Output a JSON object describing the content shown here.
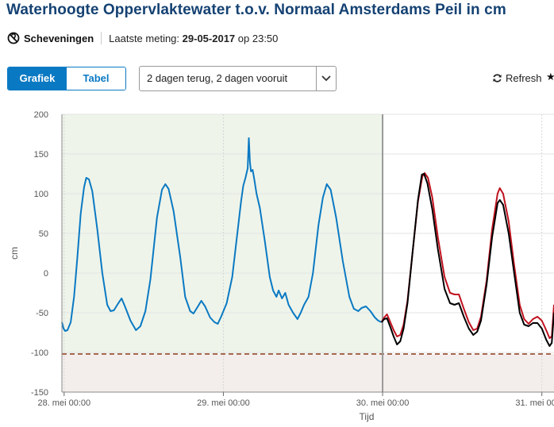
{
  "header": {
    "title": "Waterhoogte Oppervlaktewater t.o.v. Normaal Amsterdams Peil in cm",
    "location": "Scheveningen",
    "last_measurement_label": "Laatste meting:",
    "last_measurement_date": "29-05-2017",
    "last_measurement_time": "op 23:50"
  },
  "controls": {
    "view_toggle": [
      "Grafiek",
      "Tabel"
    ],
    "active_view": "Grafiek",
    "range_select": "2 dagen terug, 2 dagen vooruit",
    "refresh_label": "Refresh",
    "icons": {
      "location": "no-location-icon",
      "refresh": "refresh-icon",
      "dropdown": "chevron-down-icon",
      "favorite": "star-icon"
    }
  },
  "chart_data": {
    "type": "line",
    "xlabel": "Tijd",
    "ylabel": "cm",
    "ylim": [
      -150,
      200
    ],
    "yticks": [
      -150,
      -100,
      -50,
      0,
      50,
      100,
      150,
      200
    ],
    "xticks": [
      "28. mei 00:00",
      "29. mei 00:00",
      "30. mei 00:00",
      "31. mei 00:00"
    ],
    "x_start": "2017-05-27 23:40",
    "x_end": "2017-05-31 01:50",
    "now": "2017-05-30 00:00",
    "threshold": -102,
    "grid": true,
    "colors": {
      "measured": "#0a79c3",
      "forecast_red": "#c0121f",
      "forecast_black": "#000000",
      "threshold": "#8b3a1a",
      "past_bg": "#eef4ea",
      "below_bg": "#f3eeec",
      "now_line": "#999999"
    },
    "series": [
      {
        "color": "#0a79c3",
        "points": [
          [
            "2017-05-27 23:40",
            -62
          ],
          [
            "2017-05-27 23:55",
            -70
          ],
          [
            "2017-05-28 00:10",
            -73
          ],
          [
            "2017-05-28 00:30",
            -72
          ],
          [
            "2017-05-28 01:00",
            -62
          ],
          [
            "2017-05-28 01:30",
            -30
          ],
          [
            "2017-05-28 02:00",
            20
          ],
          [
            "2017-05-28 02:30",
            75
          ],
          [
            "2017-05-28 03:00",
            108
          ],
          [
            "2017-05-28 03:20",
            120
          ],
          [
            "2017-05-28 03:45",
            118
          ],
          [
            "2017-05-28 04:15",
            103
          ],
          [
            "2017-05-28 05:00",
            55
          ],
          [
            "2017-05-28 05:45",
            0
          ],
          [
            "2017-05-28 06:30",
            -40
          ],
          [
            "2017-05-28 07:00",
            -48
          ],
          [
            "2017-05-28 07:30",
            -47
          ],
          [
            "2017-05-28 08:10",
            -38
          ],
          [
            "2017-05-28 08:40",
            -32
          ],
          [
            "2017-05-28 09:10",
            -42
          ],
          [
            "2017-05-28 10:00",
            -60
          ],
          [
            "2017-05-28 10:50",
            -72
          ],
          [
            "2017-05-28 11:30",
            -67
          ],
          [
            "2017-05-28 12:15",
            -48
          ],
          [
            "2017-05-28 13:00",
            -8
          ],
          [
            "2017-05-28 14:00",
            70
          ],
          [
            "2017-05-28 14:45",
            105
          ],
          [
            "2017-05-28 15:15",
            112
          ],
          [
            "2017-05-28 15:45",
            106
          ],
          [
            "2017-05-28 16:30",
            78
          ],
          [
            "2017-05-28 17:30",
            20
          ],
          [
            "2017-05-28 18:15",
            -30
          ],
          [
            "2017-05-28 19:00",
            -48
          ],
          [
            "2017-05-28 19:30",
            -51
          ],
          [
            "2017-05-28 20:10",
            -42
          ],
          [
            "2017-05-28 20:40",
            -35
          ],
          [
            "2017-05-28 21:15",
            -42
          ],
          [
            "2017-05-28 22:00",
            -56
          ],
          [
            "2017-05-28 22:40",
            -62
          ],
          [
            "2017-05-28 23:10",
            -64
          ],
          [
            "2017-05-28 23:40",
            -55
          ],
          [
            "2017-05-29 00:30",
            -38
          ],
          [
            "2017-05-29 01:20",
            -5
          ],
          [
            "2017-05-29 02:00",
            42
          ],
          [
            "2017-05-29 02:40",
            90
          ],
          [
            "2017-05-29 03:00",
            110
          ],
          [
            "2017-05-29 03:20",
            120
          ],
          [
            "2017-05-29 03:40",
            132
          ],
          [
            "2017-05-29 03:50",
            170
          ],
          [
            "2017-05-29 04:00",
            140
          ],
          [
            "2017-05-29 04:10",
            128
          ],
          [
            "2017-05-29 04:25",
            130
          ],
          [
            "2017-05-29 04:40",
            118
          ],
          [
            "2017-05-29 05:00",
            100
          ],
          [
            "2017-05-29 05:30",
            82
          ],
          [
            "2017-05-29 06:15",
            40
          ],
          [
            "2017-05-29 07:00",
            -5
          ],
          [
            "2017-05-29 07:30",
            -22
          ],
          [
            "2017-05-29 08:00",
            -30
          ],
          [
            "2017-05-29 08:20",
            -22
          ],
          [
            "2017-05-29 08:50",
            -32
          ],
          [
            "2017-05-29 09:20",
            -25
          ],
          [
            "2017-05-29 09:50",
            -40
          ],
          [
            "2017-05-29 10:30",
            -50
          ],
          [
            "2017-05-29 11:10",
            -58
          ],
          [
            "2017-05-29 11:40",
            -50
          ],
          [
            "2017-05-29 12:10",
            -40
          ],
          [
            "2017-05-29 12:50",
            -30
          ],
          [
            "2017-05-29 13:30",
            0
          ],
          [
            "2017-05-29 14:20",
            60
          ],
          [
            "2017-05-29 15:00",
            95
          ],
          [
            "2017-05-29 15:35",
            112
          ],
          [
            "2017-05-29 16:10",
            105
          ],
          [
            "2017-05-29 17:00",
            70
          ],
          [
            "2017-05-29 18:00",
            15
          ],
          [
            "2017-05-29 19:00",
            -30
          ],
          [
            "2017-05-29 19:40",
            -45
          ],
          [
            "2017-05-29 20:20",
            -48
          ],
          [
            "2017-05-29 20:50",
            -44
          ],
          [
            "2017-05-29 21:30",
            -42
          ],
          [
            "2017-05-29 22:10",
            -48
          ],
          [
            "2017-05-29 22:50",
            -56
          ],
          [
            "2017-05-29 23:20",
            -60
          ],
          [
            "2017-05-29 23:50",
            -62
          ]
        ]
      },
      {
        "color": "#c0121f",
        "points": [
          [
            "2017-05-29 23:50",
            -62
          ],
          [
            "2017-05-30 00:15",
            -56
          ],
          [
            "2017-05-30 00:40",
            -52
          ],
          [
            "2017-05-30 01:10",
            -62
          ],
          [
            "2017-05-30 01:40",
            -72
          ],
          [
            "2017-05-30 02:10",
            -80
          ],
          [
            "2017-05-30 02:40",
            -78
          ],
          [
            "2017-05-30 03:10",
            -65
          ],
          [
            "2017-05-30 03:45",
            -35
          ],
          [
            "2017-05-30 04:30",
            25
          ],
          [
            "2017-05-30 05:20",
            90
          ],
          [
            "2017-05-30 06:00",
            122
          ],
          [
            "2017-05-30 06:20",
            126
          ],
          [
            "2017-05-30 06:50",
            120
          ],
          [
            "2017-05-30 07:30",
            95
          ],
          [
            "2017-05-30 08:20",
            45
          ],
          [
            "2017-05-30 09:20",
            -5
          ],
          [
            "2017-05-30 10:10",
            -25
          ],
          [
            "2017-05-30 10:50",
            -27
          ],
          [
            "2017-05-30 11:30",
            -27
          ],
          [
            "2017-05-30 12:15",
            -45
          ],
          [
            "2017-05-30 13:00",
            -62
          ],
          [
            "2017-05-30 13:40",
            -72
          ],
          [
            "2017-05-30 14:15",
            -70
          ],
          [
            "2017-05-30 14:50",
            -55
          ],
          [
            "2017-05-30 15:40",
            -10
          ],
          [
            "2017-05-30 16:30",
            55
          ],
          [
            "2017-05-30 17:20",
            100
          ],
          [
            "2017-05-30 17:40",
            107
          ],
          [
            "2017-05-30 18:10",
            100
          ],
          [
            "2017-05-30 19:00",
            65
          ],
          [
            "2017-05-30 19:50",
            10
          ],
          [
            "2017-05-30 20:40",
            -40
          ],
          [
            "2017-05-30 21:20",
            -58
          ],
          [
            "2017-05-30 22:00",
            -64
          ],
          [
            "2017-05-30 22:40",
            -58
          ],
          [
            "2017-05-30 23:20",
            -55
          ],
          [
            "2017-05-31 00:00",
            -60
          ],
          [
            "2017-05-31 00:40",
            -72
          ],
          [
            "2017-05-31 01:10",
            -82
          ],
          [
            "2017-05-31 01:30",
            -80
          ],
          [
            "2017-05-31 01:50",
            -40
          ]
        ]
      },
      {
        "color": "#000000",
        "points": [
          [
            "2017-05-29 23:50",
            -62
          ],
          [
            "2017-05-30 00:15",
            -58
          ],
          [
            "2017-05-30 00:40",
            -57
          ],
          [
            "2017-05-30 01:10",
            -68
          ],
          [
            "2017-05-30 01:40",
            -80
          ],
          [
            "2017-05-30 02:10",
            -90
          ],
          [
            "2017-05-30 02:40",
            -86
          ],
          [
            "2017-05-30 03:10",
            -70
          ],
          [
            "2017-05-30 03:45",
            -38
          ],
          [
            "2017-05-30 04:30",
            25
          ],
          [
            "2017-05-30 05:20",
            92
          ],
          [
            "2017-05-30 05:55",
            124
          ],
          [
            "2017-05-30 06:15",
            125
          ],
          [
            "2017-05-30 06:45",
            113
          ],
          [
            "2017-05-30 07:30",
            80
          ],
          [
            "2017-05-30 08:20",
            30
          ],
          [
            "2017-05-30 09:20",
            -20
          ],
          [
            "2017-05-30 10:10",
            -38
          ],
          [
            "2017-05-30 10:50",
            -40
          ],
          [
            "2017-05-30 11:30",
            -38
          ],
          [
            "2017-05-30 12:15",
            -55
          ],
          [
            "2017-05-30 13:00",
            -70
          ],
          [
            "2017-05-30 13:40",
            -78
          ],
          [
            "2017-05-30 14:15",
            -74
          ],
          [
            "2017-05-30 14:50",
            -60
          ],
          [
            "2017-05-30 15:40",
            -15
          ],
          [
            "2017-05-30 16:30",
            45
          ],
          [
            "2017-05-30 17:20",
            88
          ],
          [
            "2017-05-30 17:40",
            92
          ],
          [
            "2017-05-30 18:10",
            86
          ],
          [
            "2017-05-30 19:00",
            50
          ],
          [
            "2017-05-30 19:50",
            0
          ],
          [
            "2017-05-30 20:40",
            -50
          ],
          [
            "2017-05-30 21:20",
            -65
          ],
          [
            "2017-05-30 22:00",
            -67
          ],
          [
            "2017-05-30 22:40",
            -63
          ],
          [
            "2017-05-30 23:20",
            -63
          ],
          [
            "2017-05-31 00:00",
            -70
          ],
          [
            "2017-05-31 00:40",
            -84
          ],
          [
            "2017-05-31 01:10",
            -92
          ],
          [
            "2017-05-31 01:30",
            -88
          ],
          [
            "2017-05-31 01:50",
            -50
          ]
        ]
      }
    ]
  }
}
